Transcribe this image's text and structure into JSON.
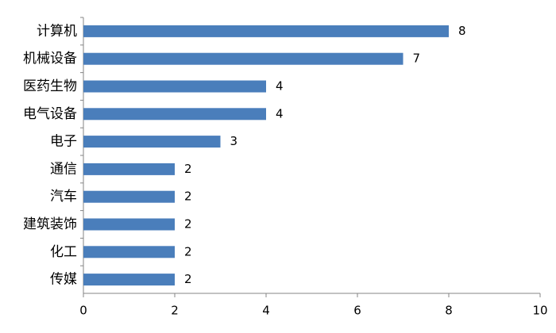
{
  "chart_data": {
    "type": "hbar",
    "categories": [
      "计算机",
      "机械设备",
      "医药生物",
      "电气设备",
      "电子",
      "通信",
      "汽车",
      "建筑装饰",
      "化工",
      "传媒"
    ],
    "values": [
      8,
      7,
      4,
      4,
      3,
      2,
      2,
      2,
      2,
      2
    ],
    "color": "#4a7ebb",
    "xlim": [
      0,
      10
    ],
    "xticks": [
      0,
      2,
      4,
      6,
      8,
      10
    ],
    "grid": false
  }
}
